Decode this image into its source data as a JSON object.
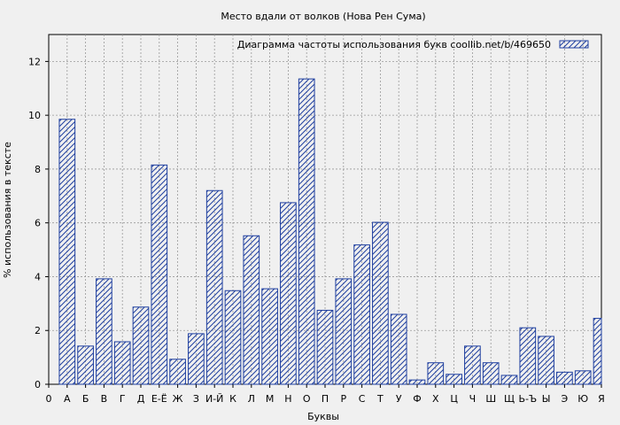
{
  "chart_data": {
    "type": "bar",
    "title": "Место вдали от волков (Нова Рен Сума)",
    "xlabel": "Буквы",
    "ylabel": "% использования в тексте",
    "legend": {
      "label": "Диаграмма частоты использования букв  coollib.net/b/469650",
      "placement": "top-right"
    },
    "ylim": [
      0,
      13
    ],
    "yticks": [
      0,
      2,
      4,
      6,
      8,
      10,
      12
    ],
    "grid": true,
    "bar_color": "#1f3f9f",
    "categories": [
      "0",
      "А",
      "Б",
      "В",
      "Г",
      "Д",
      "Е-Ё",
      "Ж",
      "З",
      "И-Й",
      "К",
      "Л",
      "М",
      "Н",
      "О",
      "П",
      "Р",
      "С",
      "Т",
      "У",
      "Ф",
      "Х",
      "Ц",
      "Ч",
      "Ш",
      "Щ",
      "Ь-Ъ",
      "Ы",
      "Э",
      "Ю",
      "Я"
    ],
    "values": [
      null,
      9.85,
      1.42,
      3.92,
      1.58,
      2.87,
      8.15,
      0.93,
      1.88,
      7.2,
      3.48,
      5.52,
      3.55,
      6.75,
      11.35,
      2.75,
      3.92,
      5.18,
      6.02,
      2.6,
      0.16,
      0.8,
      0.37,
      1.42,
      0.8,
      0.33,
      2.1,
      1.78,
      0.45,
      0.5,
      2.45
    ]
  }
}
